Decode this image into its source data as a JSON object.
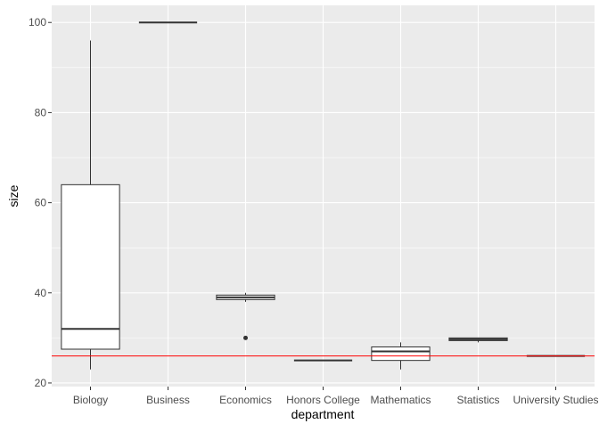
{
  "chart_data": {
    "type": "boxplot",
    "xlabel": "department",
    "ylabel": "size",
    "categories": [
      "Biology",
      "Business",
      "Economics",
      "Honors College",
      "Mathematics",
      "Statistics",
      "University Studies"
    ],
    "boxes": [
      {
        "category": "Biology",
        "whisker_low": 23,
        "q1": 27.5,
        "median": 32,
        "q3": 64,
        "whisker_high": 96,
        "outliers": []
      },
      {
        "category": "Business",
        "whisker_low": 100,
        "q1": 100,
        "median": 100,
        "q3": 100,
        "whisker_high": 100,
        "outliers": []
      },
      {
        "category": "Economics",
        "whisker_low": 38,
        "q1": 38.5,
        "median": 39,
        "q3": 39.5,
        "whisker_high": 40,
        "outliers": [
          30
        ]
      },
      {
        "category": "Honors College",
        "whisker_low": 25,
        "q1": 25,
        "median": 25,
        "q3": 25,
        "whisker_high": 25,
        "outliers": []
      },
      {
        "category": "Mathematics",
        "whisker_low": 23,
        "q1": 25,
        "median": 27,
        "q3": 28,
        "whisker_high": 29,
        "outliers": []
      },
      {
        "category": "Statistics",
        "whisker_low": 29,
        "q1": 29.4,
        "median": 29.7,
        "q3": 30,
        "whisker_high": 30,
        "outliers": []
      },
      {
        "category": "University Studies",
        "whisker_low": 26,
        "q1": 26,
        "median": 26,
        "q3": 26,
        "whisker_high": 26,
        "outliers": []
      }
    ],
    "ylim": [
      19.2,
      103.8
    ],
    "yticks": [
      20,
      40,
      60,
      80,
      100
    ],
    "reference_line": {
      "y": 26,
      "color": "#ff0000"
    },
    "grid": true,
    "colors": {
      "panel": "#ebebeb",
      "grid_major": "#ffffff",
      "box_fill": "#ffffff",
      "box_line": "#333333"
    }
  }
}
